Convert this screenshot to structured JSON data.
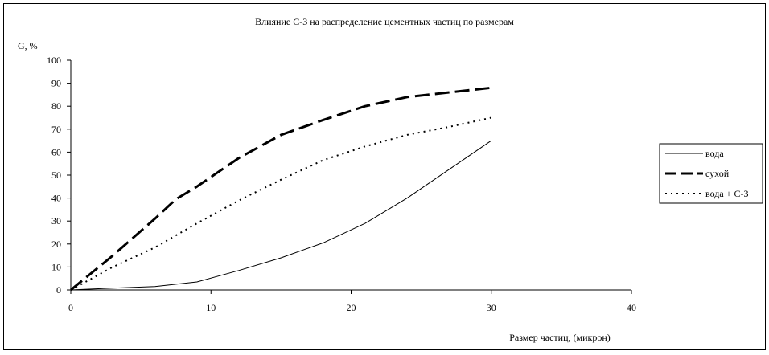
{
  "chart_data": {
    "type": "line",
    "title": "Влияние С-3 на распределение цементных частиц по размерам",
    "ylabel": "G, %",
    "xlabel": "Размер частиц, (микрон)",
    "xlim": [
      0,
      40
    ],
    "ylim": [
      0,
      100
    ],
    "xticks": [
      0,
      10,
      20,
      30,
      40
    ],
    "yticks": [
      0,
      10,
      20,
      30,
      40,
      50,
      60,
      70,
      80,
      90,
      100
    ],
    "grid": false,
    "legend_position": "right",
    "series": [
      {
        "name": "вода",
        "style": "solid",
        "x": [
          0,
          3,
          6,
          9,
          12,
          15,
          18,
          21,
          24,
          27,
          30
        ],
        "y": [
          0,
          0.8,
          1.5,
          3.5,
          8.5,
          14,
          20.5,
          29,
          40,
          52.5,
          65
        ]
      },
      {
        "name": "сухой",
        "style": "dashed",
        "x": [
          0,
          3,
          6,
          7.5,
          9,
          12,
          15,
          18,
          21,
          24,
          27,
          30
        ],
        "y": [
          0,
          15,
          31,
          39.5,
          45,
          57.5,
          67.5,
          74,
          80,
          84,
          86,
          88
        ]
      },
      {
        "name": "вода + С-3",
        "style": "dotted",
        "x": [
          0,
          3,
          6,
          9,
          12,
          15,
          18,
          21,
          24,
          27,
          30
        ],
        "y": [
          0,
          10,
          18.5,
          29,
          39,
          48,
          56.5,
          62.5,
          67.5,
          71,
          75
        ]
      }
    ]
  }
}
